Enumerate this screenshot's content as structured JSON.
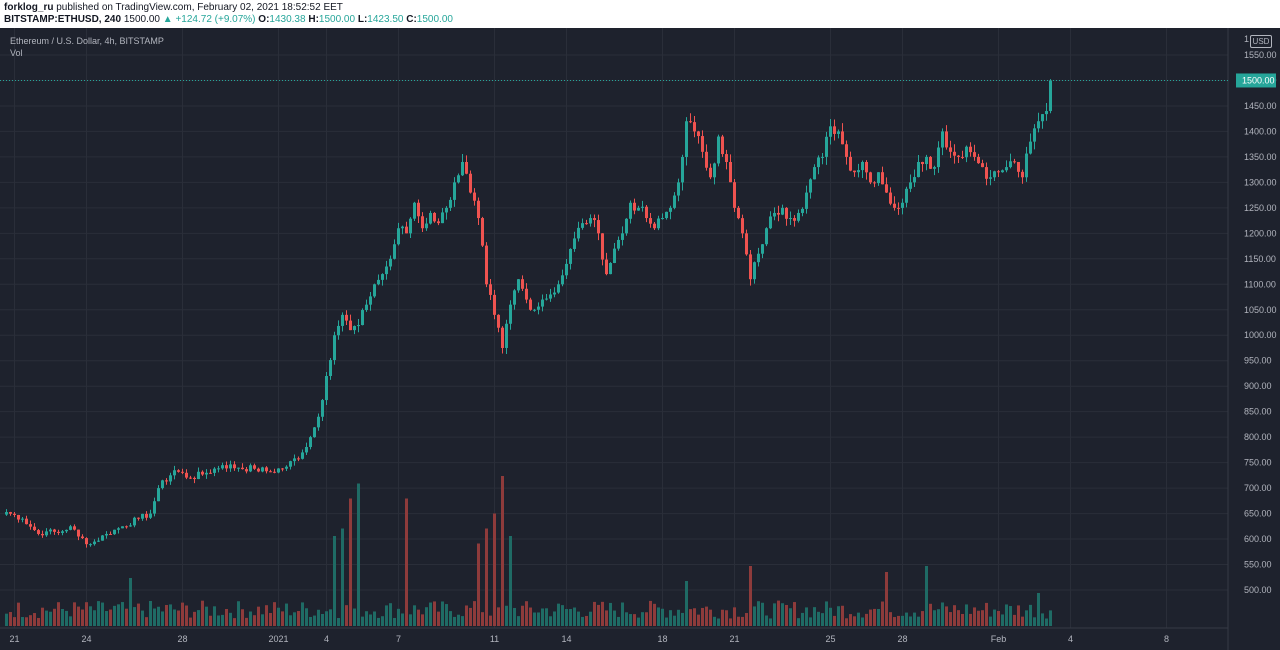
{
  "header": {
    "author": "forklog_ru",
    "published": "published on TradingView.com, February 02, 2021 18:52:52 EET",
    "symbol": "BITSTAMP:ETHUSD, 240",
    "last": "1500.00",
    "change": "▲ +124.72 (+9.07%)",
    "o_label": "O:",
    "o_value": "1430.38",
    "h_label": "H:",
    "h_value": "1500.00",
    "l_label": "L:",
    "l_value": "1423.50",
    "c_label": "C:",
    "c_value": "1500.00"
  },
  "legend": {
    "title": "Ethereum / U.S. Dollar, 4h, BITSTAMP",
    "vol": "Vol",
    "currency": "USD"
  },
  "colors": {
    "background": "#1e222d",
    "up": "#26a69a",
    "down": "#ef5350",
    "vol_up": "#1f6b65",
    "vol_down": "#8e3b3b",
    "grid": "#2a2e39",
    "text": "#b2b5be",
    "price_line": "#26a69a"
  },
  "chart_data": {
    "type": "candlestick",
    "title": "Ethereum / U.S. Dollar, 4h, BITSTAMP",
    "last_price": 1500.0,
    "last_price_label": "1500.00",
    "y_ticks": [
      500,
      550,
      600,
      650,
      700,
      750,
      800,
      850,
      900,
      950,
      1000,
      1050,
      1100,
      1150,
      1200,
      1250,
      1300,
      1350,
      1400,
      1450,
      1500,
      1550
    ],
    "y_tick_labels": [
      "500.00",
      "550.00",
      "600.00",
      "650.00",
      "700.00",
      "750.00",
      "800.00",
      "850.00",
      "900.00",
      "950.00",
      "1000.00",
      "1050.00",
      "1100.00",
      "1150.00",
      "1200.00",
      "1250.00",
      "1300.00",
      "1350.00",
      "1400.00",
      "1450.00",
      "1500.00",
      "1550.00"
    ],
    "top_label": "1",
    "x_labels": [
      {
        "label": "21",
        "bar": 2
      },
      {
        "label": "24",
        "bar": 20
      },
      {
        "label": "28",
        "bar": 44
      },
      {
        "label": "2021",
        "bar": 68
      },
      {
        "label": "4",
        "bar": 80
      },
      {
        "label": "7",
        "bar": 98
      },
      {
        "label": "11",
        "bar": 122
      },
      {
        "label": "14",
        "bar": 140
      },
      {
        "label": "18",
        "bar": 164
      },
      {
        "label": "21",
        "bar": 182
      },
      {
        "label": "25",
        "bar": 206
      },
      {
        "label": "28",
        "bar": 224
      },
      {
        "label": "Feb",
        "bar": 248
      },
      {
        "label": "4",
        "bar": 266
      },
      {
        "label": "8",
        "bar": 290
      }
    ],
    "close_anchors": [
      [
        0,
        653
      ],
      [
        4,
        640
      ],
      [
        8,
        610
      ],
      [
        10,
        615
      ],
      [
        13,
        612
      ],
      [
        16,
        625
      ],
      [
        18,
        605
      ],
      [
        21,
        590
      ],
      [
        25,
        610
      ],
      [
        29,
        625
      ],
      [
        33,
        640
      ],
      [
        36,
        650
      ],
      [
        38,
        700
      ],
      [
        42,
        735
      ],
      [
        46,
        720
      ],
      [
        50,
        730
      ],
      [
        54,
        745
      ],
      [
        58,
        740
      ],
      [
        62,
        738
      ],
      [
        66,
        732
      ],
      [
        70,
        742
      ],
      [
        74,
        770
      ],
      [
        76,
        800
      ],
      [
        78,
        840
      ],
      [
        80,
        920
      ],
      [
        82,
        1000
      ],
      [
        84,
        1040
      ],
      [
        86,
        1010
      ],
      [
        88,
        1020
      ],
      [
        90,
        1060
      ],
      [
        92,
        1100
      ],
      [
        94,
        1120
      ],
      [
        96,
        1150
      ],
      [
        98,
        1210
      ],
      [
        100,
        1200
      ],
      [
        102,
        1260
      ],
      [
        104,
        1210
      ],
      [
        106,
        1240
      ],
      [
        108,
        1220
      ],
      [
        110,
        1250
      ],
      [
        112,
        1300
      ],
      [
        114,
        1340
      ],
      [
        116,
        1280
      ],
      [
        118,
        1230
      ],
      [
        120,
        1100
      ],
      [
        122,
        1040
      ],
      [
        124,
        975
      ],
      [
        126,
        1060
      ],
      [
        128,
        1110
      ],
      [
        130,
        1070
      ],
      [
        132,
        1050
      ],
      [
        134,
        1070
      ],
      [
        136,
        1080
      ],
      [
        138,
        1100
      ],
      [
        140,
        1140
      ],
      [
        142,
        1190
      ],
      [
        144,
        1220
      ],
      [
        146,
        1230
      ],
      [
        148,
        1200
      ],
      [
        150,
        1120
      ],
      [
        152,
        1170
      ],
      [
        154,
        1200
      ],
      [
        156,
        1260
      ],
      [
        158,
        1250
      ],
      [
        160,
        1230
      ],
      [
        162,
        1210
      ],
      [
        164,
        1230
      ],
      [
        166,
        1250
      ],
      [
        168,
        1300
      ],
      [
        170,
        1420
      ],
      [
        172,
        1400
      ],
      [
        174,
        1360
      ],
      [
        176,
        1310
      ],
      [
        178,
        1390
      ],
      [
        180,
        1340
      ],
      [
        182,
        1250
      ],
      [
        184,
        1200
      ],
      [
        186,
        1110
      ],
      [
        188,
        1160
      ],
      [
        190,
        1210
      ],
      [
        192,
        1240
      ],
      [
        194,
        1250
      ],
      [
        196,
        1230
      ],
      [
        198,
        1240
      ],
      [
        200,
        1280
      ],
      [
        202,
        1330
      ],
      [
        204,
        1350
      ],
      [
        206,
        1410
      ],
      [
        208,
        1400
      ],
      [
        210,
        1350
      ],
      [
        212,
        1320
      ],
      [
        214,
        1340
      ],
      [
        216,
        1300
      ],
      [
        218,
        1320
      ],
      [
        220,
        1280
      ],
      [
        222,
        1250
      ],
      [
        224,
        1260
      ],
      [
        226,
        1300
      ],
      [
        228,
        1340
      ],
      [
        230,
        1350
      ],
      [
        232,
        1330
      ],
      [
        234,
        1400
      ],
      [
        236,
        1360
      ],
      [
        238,
        1350
      ],
      [
        240,
        1370
      ],
      [
        242,
        1350
      ],
      [
        244,
        1330
      ],
      [
        246,
        1310
      ],
      [
        248,
        1320
      ],
      [
        250,
        1330
      ],
      [
        252,
        1340
      ],
      [
        254,
        1310
      ],
      [
        256,
        1380
      ],
      [
        258,
        1420
      ],
      [
        260,
        1440
      ],
      [
        261,
        1500
      ]
    ],
    "volume_spikes": [
      {
        "bar": 31,
        "value": 0.32
      },
      {
        "bar": 82,
        "value": 0.6
      },
      {
        "bar": 84,
        "value": 0.65
      },
      {
        "bar": 86,
        "value": 0.85
      },
      {
        "bar": 88,
        "value": 0.95
      },
      {
        "bar": 100,
        "value": 0.85
      },
      {
        "bar": 118,
        "value": 0.55
      },
      {
        "bar": 120,
        "value": 0.65
      },
      {
        "bar": 122,
        "value": 0.75
      },
      {
        "bar": 124,
        "value": 1.0
      },
      {
        "bar": 126,
        "value": 0.6
      },
      {
        "bar": 170,
        "value": 0.3
      },
      {
        "bar": 186,
        "value": 0.4
      },
      {
        "bar": 220,
        "value": 0.36
      },
      {
        "bar": 230,
        "value": 0.4
      },
      {
        "bar": 258,
        "value": 0.22
      }
    ]
  }
}
